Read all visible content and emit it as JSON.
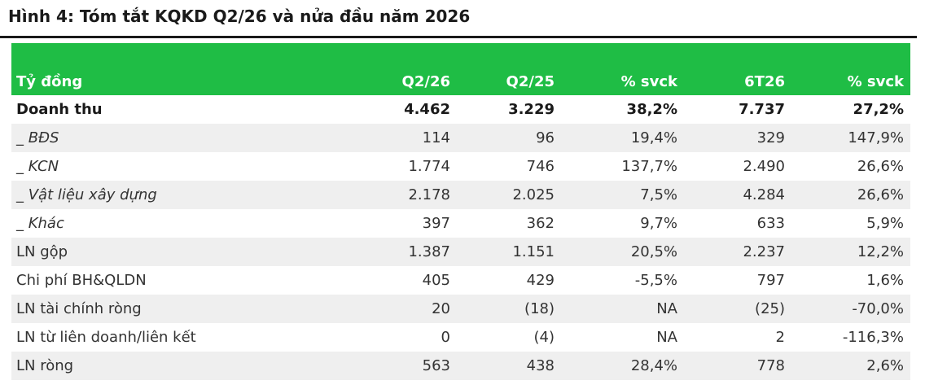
{
  "title": "Hình 4: Tóm tắt KQKD Q2/26 và nửa đầu năm 2026",
  "table": {
    "headers": [
      "Tỷ đồng",
      "Q2/26",
      "Q2/25",
      "% svck",
      "6T26",
      "% svck"
    ],
    "rows": [
      {
        "label": "Doanh thu",
        "bold": true,
        "italic": false,
        "values": [
          "4.462",
          "3.229",
          "38,2%",
          "7.737",
          "27,2%"
        ]
      },
      {
        "label": "_ BĐS",
        "bold": false,
        "italic": true,
        "values": [
          "114",
          "96",
          "19,4%",
          "329",
          "147,9%"
        ]
      },
      {
        "label": "_ KCN",
        "bold": false,
        "italic": true,
        "values": [
          "1.774",
          "746",
          "137,7%",
          "2.490",
          "26,6%"
        ]
      },
      {
        "label": "_ Vật liệu xây dựng",
        "bold": false,
        "italic": true,
        "values": [
          "2.178",
          "2.025",
          "7,5%",
          "4.284",
          "26,6%"
        ]
      },
      {
        "label": "_ Khác",
        "bold": false,
        "italic": true,
        "values": [
          "397",
          "362",
          "9,7%",
          "633",
          "5,9%"
        ]
      },
      {
        "label": "LN gộp",
        "bold": false,
        "italic": false,
        "values": [
          "1.387",
          "1.151",
          "20,5%",
          "2.237",
          "12,2%"
        ]
      },
      {
        "label": "Chi phí BH&QLDN",
        "bold": false,
        "italic": false,
        "values": [
          "405",
          "429",
          "-5,5%",
          "797",
          "1,6%"
        ]
      },
      {
        "label": "LN tài chính ròng",
        "bold": false,
        "italic": false,
        "values": [
          "20",
          "(18)",
          "NA",
          "(25)",
          "-70,0%"
        ]
      },
      {
        "label": "LN từ liên doanh/liên kết",
        "bold": false,
        "italic": false,
        "values": [
          "0",
          "(4)",
          "NA",
          "2",
          "-116,3%"
        ]
      },
      {
        "label": "LN ròng",
        "bold": false,
        "italic": false,
        "values": [
          "563",
          "438",
          "28,4%",
          "778",
          "2,6%"
        ]
      }
    ]
  },
  "colors": {
    "header_bg": "#1fbd45",
    "header_text": "#ffffff",
    "shaded_row": "#efefef"
  }
}
